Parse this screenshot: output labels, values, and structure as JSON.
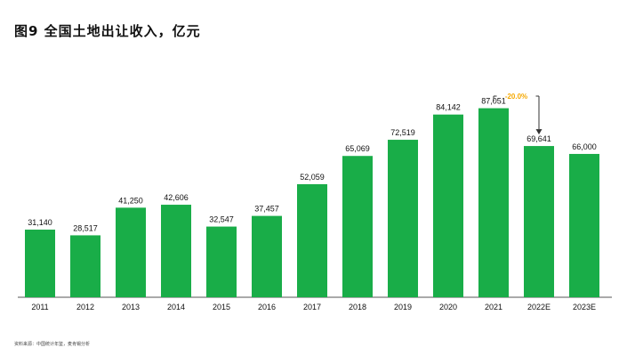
{
  "title": "图9 全国土地出让收入，亿元",
  "source": "资料来源：中国统计年鉴，麦肯锡分析",
  "colors": {
    "bar": "#19ad48",
    "axis": "#555555",
    "annotation": "#f5a800",
    "arrow": "#333333"
  },
  "chart_data": {
    "type": "bar",
    "title": "图9 全国土地出让收入，亿元",
    "xlabel": "",
    "ylabel": "",
    "categories": [
      "2011",
      "2012",
      "2013",
      "2014",
      "2015",
      "2016",
      "2017",
      "2018",
      "2019",
      "2020",
      "2021",
      "2022E",
      "2023E"
    ],
    "values": [
      31140,
      28517,
      41250,
      42606,
      32547,
      37457,
      52059,
      65069,
      72519,
      84142,
      87051,
      69641,
      66000
    ],
    "value_labels": [
      "31,140",
      "28,517",
      "41,250",
      "42,606",
      "32,547",
      "37,457",
      "52,059",
      "65,069",
      "72,519",
      "84,142",
      "87,051",
      "69,641",
      "66,000"
    ],
    "ylim": [
      0,
      100000
    ],
    "grid": false,
    "legend": "none",
    "annotations": [
      {
        "text": "-20.0%",
        "from": "2021",
        "to": "2022E"
      }
    ]
  }
}
